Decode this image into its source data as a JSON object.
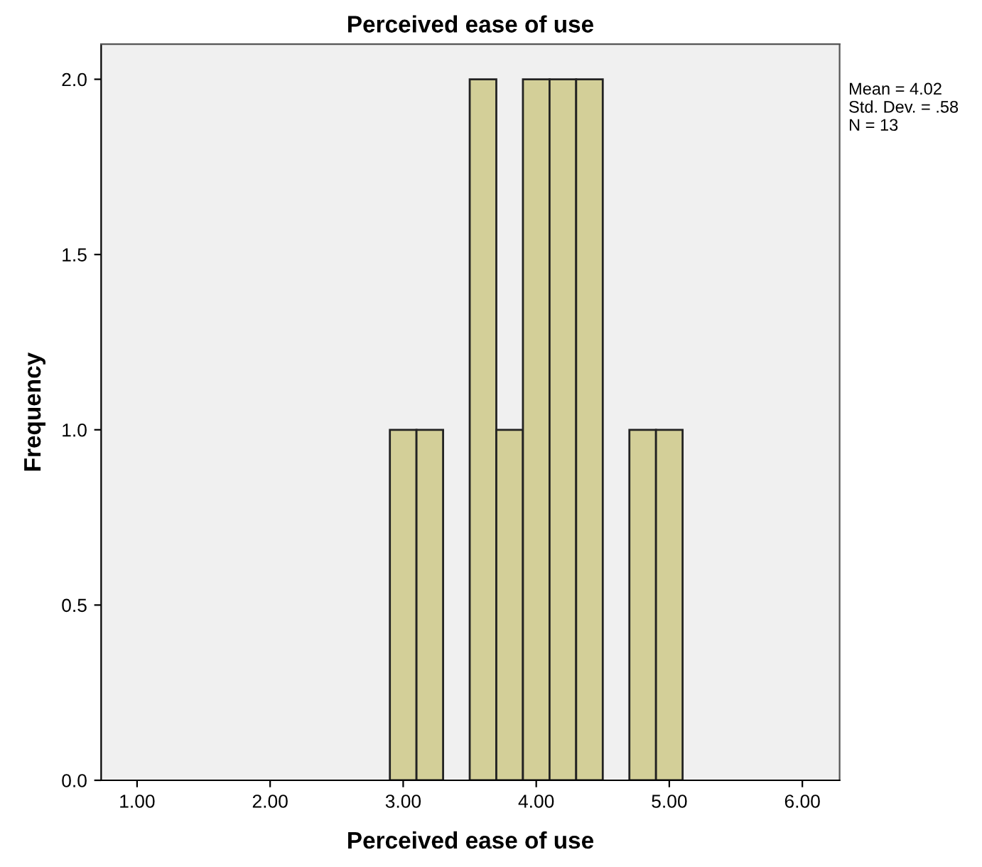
{
  "chart_data": {
    "type": "histogram",
    "title": "Perceived ease of use",
    "xlabel": "Perceived ease of use",
    "ylabel": "Frequency",
    "bins": [
      2.9,
      3.1,
      3.3,
      3.5,
      3.7,
      3.9,
      4.1,
      4.3,
      4.5,
      4.7,
      4.9,
      5.1
    ],
    "values": [
      1,
      1,
      0,
      2,
      1,
      2,
      2,
      2,
      0,
      1,
      1
    ],
    "color": "#d3cf98",
    "xlim": [
      0.73,
      6.28
    ],
    "xticks": [
      {
        "value": 1,
        "label": "1.00"
      },
      {
        "value": 2,
        "label": "2.00"
      },
      {
        "value": 3,
        "label": "3.00"
      },
      {
        "value": 4,
        "label": "4.00"
      },
      {
        "value": 5,
        "label": "5.00"
      },
      {
        "value": 6,
        "label": "6.00"
      }
    ],
    "ylim": [
      0,
      2.1
    ],
    "yticks": [
      {
        "value": 0,
        "label": "0.0"
      },
      {
        "value": 0.5,
        "label": "0.5"
      },
      {
        "value": 1,
        "label": "1.0"
      },
      {
        "value": 1.5,
        "label": "1.5"
      },
      {
        "value": 2,
        "label": "2.0"
      }
    ],
    "annotations": [
      "Mean = 4.02\nStd. Dev. = .58\nN = 13"
    ],
    "grid": false,
    "legend": false
  }
}
